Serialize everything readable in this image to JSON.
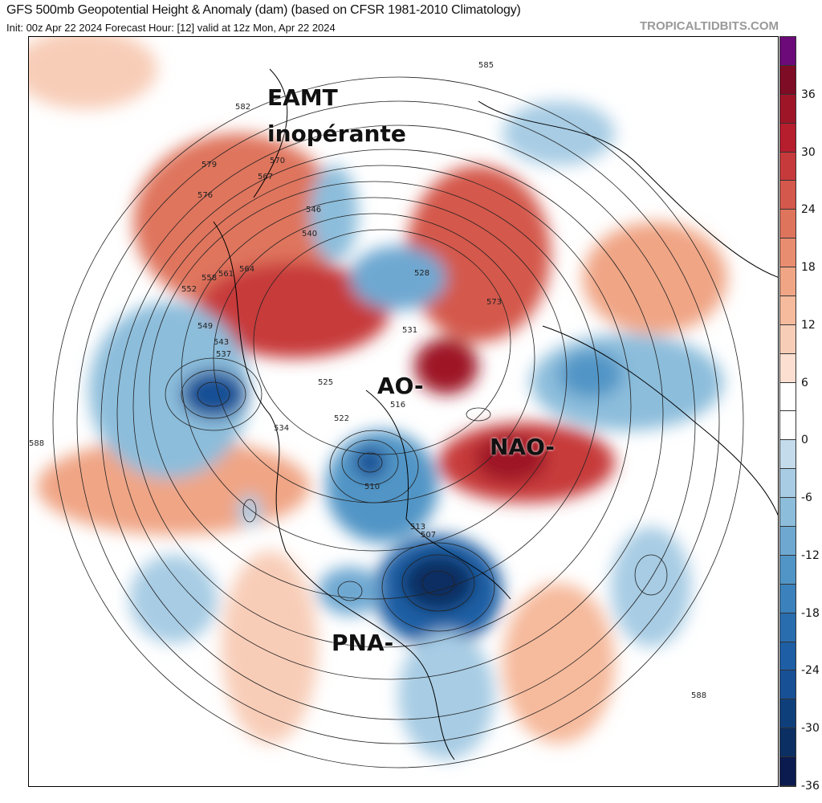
{
  "header": {
    "title": "GFS 500mb Geopotential Height & Anomaly (dam) (based on CFSR 1981-2010 Climatology)",
    "subtitle": "Init: 00z Apr 22 2024   Forecast Hour: [12]   valid at 12z Mon, Apr 22 2024",
    "brand": "TROPICALTIDBITS.COM"
  },
  "annotations": {
    "eamt": "EAMT",
    "eamt2": "inopérante",
    "ao": "AO-",
    "nao": "NAO-",
    "pna": "PNA-"
  },
  "colorbar": {
    "labels": [
      "36",
      "30",
      "24",
      "18",
      "12",
      "6",
      "0",
      "-6",
      "-12",
      "-18",
      "-24",
      "-30",
      "-36"
    ],
    "colors": [
      "#6b0a78",
      "#7d0c24",
      "#9e1528",
      "#b61d2d",
      "#c73a3b",
      "#d4584b",
      "#df745d",
      "#e98d70",
      "#f0a585",
      "#f6ba9c",
      "#f8cdb8",
      "#fcdfd0",
      "#ffffff",
      "#ffffff",
      "#c3dbeb",
      "#a7cce4",
      "#8cbddb",
      "#6ea8d1",
      "#5195c6",
      "#3b81bb",
      "#2a6daf",
      "#1e5ea4",
      "#175095",
      "#0f3f7a",
      "#0b2f62",
      "#0b1a4f"
    ]
  },
  "contour_labels": [
    "585",
    "582",
    "579",
    "576",
    "573",
    "570",
    "567",
    "564",
    "561",
    "558",
    "552",
    "549",
    "546",
    "543",
    "540",
    "537",
    "534",
    "531",
    "528",
    "525",
    "522",
    "516",
    "513",
    "510",
    "507",
    "588"
  ]
}
